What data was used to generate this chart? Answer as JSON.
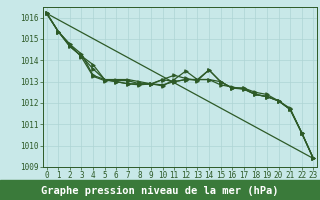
{
  "xlabel": "Graphe pression niveau de la mer (hPa)",
  "ylim": [
    1009,
    1016.5
  ],
  "xlim": [
    -0.3,
    23.3
  ],
  "yticks": [
    1009,
    1010,
    1011,
    1012,
    1013,
    1014,
    1015,
    1016
  ],
  "xticks": [
    0,
    1,
    2,
    3,
    4,
    5,
    6,
    7,
    8,
    9,
    10,
    11,
    12,
    13,
    14,
    15,
    16,
    17,
    18,
    19,
    20,
    21,
    22,
    23
  ],
  "bg_color": "#c8e8e8",
  "grid_color": "#aed4d4",
  "line_color": "#2d5a27",
  "label_bg": "#3a7a3a",
  "series": [
    [
      1016.2,
      1015.35,
      1014.65,
      1014.2,
      1013.8,
      1013.1,
      1013.1,
      1013.1,
      1013.0,
      1012.9,
      1012.8,
      1013.1,
      1013.5,
      1013.1,
      1013.55,
      1013.0,
      1012.7,
      1012.7,
      1012.5,
      1012.4,
      1012.1,
      1011.7,
      1010.6,
      1009.4
    ],
    [
      1016.2,
      1015.35,
      1014.65,
      1014.2,
      1013.6,
      1013.1,
      1013.0,
      1012.9,
      1012.85,
      1012.9,
      1012.85,
      1013.0,
      1013.1,
      1013.1,
      1013.1,
      1013.0,
      1012.7,
      1012.7,
      1012.4,
      1012.3,
      1012.1,
      1011.7,
      1010.6,
      1009.4
    ],
    [
      1016.2,
      1015.35,
      1014.75,
      1014.3,
      1013.3,
      1013.1,
      1013.0,
      1012.9,
      1012.9,
      1012.9,
      1013.1,
      1013.0,
      1013.1,
      1013.1,
      1013.1,
      1012.85,
      1012.75,
      1012.65,
      1012.4,
      1012.3,
      1012.1,
      1011.7,
      1010.6,
      1009.4
    ],
    [
      1016.2,
      1015.35,
      1014.75,
      1014.15,
      1013.25,
      1013.05,
      1013.05,
      1013.05,
      1012.9,
      1012.88,
      1013.1,
      1013.3,
      1013.15,
      1013.05,
      1013.55,
      1013.0,
      1012.7,
      1012.65,
      1012.4,
      1012.3,
      1012.1,
      1011.75,
      1010.6,
      1009.4
    ]
  ],
  "straight_line": [
    1016.2,
    1009.4
  ],
  "font_color": "#ffffff",
  "tick_color": "#2d5a27",
  "tick_fontsize": 5.5,
  "label_fontsize": 7.5
}
